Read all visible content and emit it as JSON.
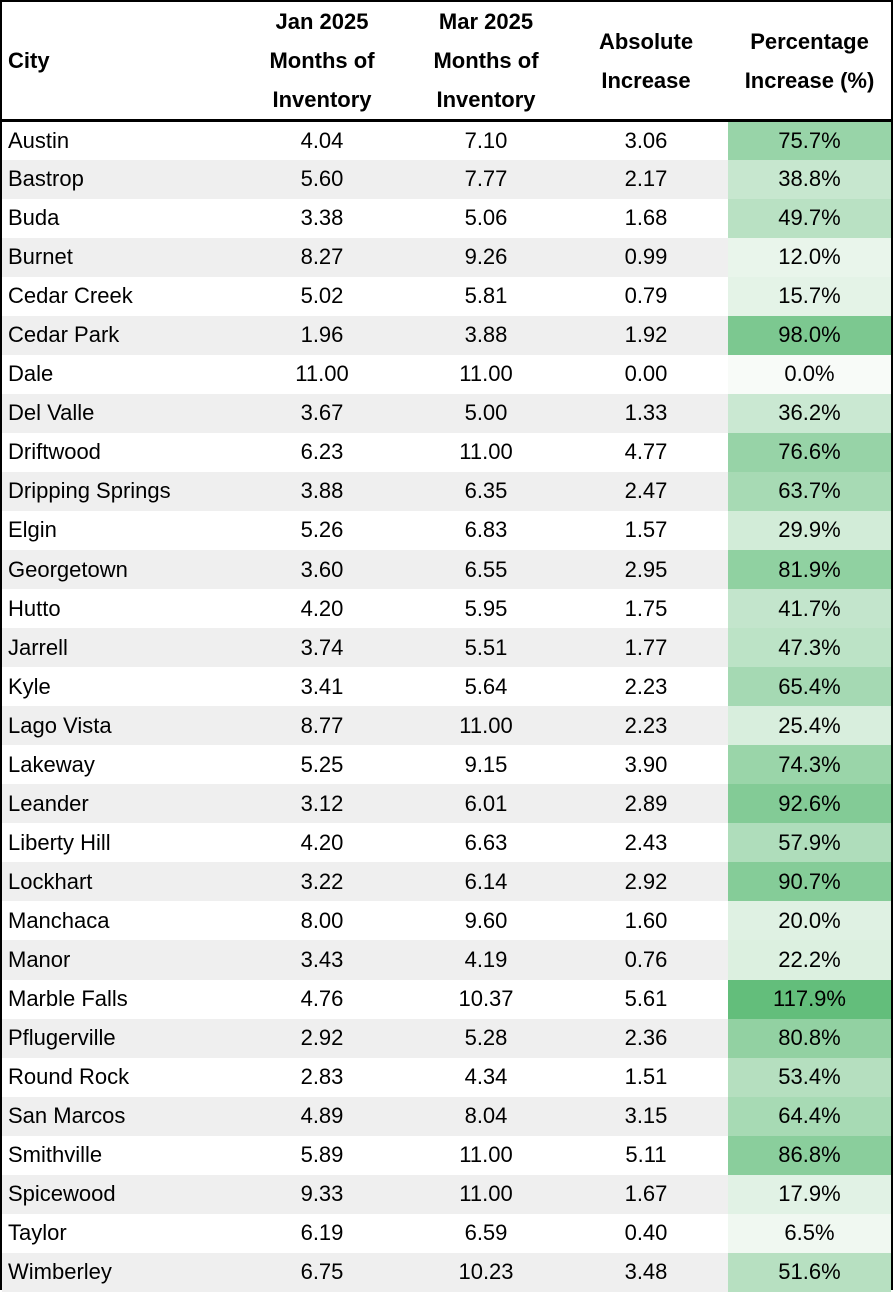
{
  "columns": {
    "city": "City",
    "jan": [
      "Jan 2025",
      "Months of",
      "Inventory"
    ],
    "mar": [
      "Mar 2025",
      "Months of",
      "Inventory"
    ],
    "abs": [
      "Absolute",
      "Increase"
    ],
    "pct": [
      "Percentage",
      "Increase (%)"
    ]
  },
  "heat_colors": {
    "low": "#f8fbf8",
    "high": "#63be7b"
  },
  "rows": [
    {
      "city": "Austin",
      "jan": "4.04",
      "mar": "7.10",
      "abs": "3.06",
      "pct": "75.7%",
      "pct_value": 75.7
    },
    {
      "city": "Bastrop",
      "jan": "5.60",
      "mar": "7.77",
      "abs": "2.17",
      "pct": "38.8%",
      "pct_value": 38.8
    },
    {
      "city": "Buda",
      "jan": "3.38",
      "mar": "5.06",
      "abs": "1.68",
      "pct": "49.7%",
      "pct_value": 49.7
    },
    {
      "city": "Burnet",
      "jan": "8.27",
      "mar": "9.26",
      "abs": "0.99",
      "pct": "12.0%",
      "pct_value": 12.0
    },
    {
      "city": "Cedar Creek",
      "jan": "5.02",
      "mar": "5.81",
      "abs": "0.79",
      "pct": "15.7%",
      "pct_value": 15.7
    },
    {
      "city": "Cedar Park",
      "jan": "1.96",
      "mar": "3.88",
      "abs": "1.92",
      "pct": "98.0%",
      "pct_value": 98.0
    },
    {
      "city": "Dale",
      "jan": "11.00",
      "mar": "11.00",
      "abs": "0.00",
      "pct": "0.0%",
      "pct_value": 0.0
    },
    {
      "city": "Del Valle",
      "jan": "3.67",
      "mar": "5.00",
      "abs": "1.33",
      "pct": "36.2%",
      "pct_value": 36.2
    },
    {
      "city": "Driftwood",
      "jan": "6.23",
      "mar": "11.00",
      "abs": "4.77",
      "pct": "76.6%",
      "pct_value": 76.6
    },
    {
      "city": "Dripping Springs",
      "jan": "3.88",
      "mar": "6.35",
      "abs": "2.47",
      "pct": "63.7%",
      "pct_value": 63.7
    },
    {
      "city": "Elgin",
      "jan": "5.26",
      "mar": "6.83",
      "abs": "1.57",
      "pct": "29.9%",
      "pct_value": 29.9
    },
    {
      "city": "Georgetown",
      "jan": "3.60",
      "mar": "6.55",
      "abs": "2.95",
      "pct": "81.9%",
      "pct_value": 81.9
    },
    {
      "city": "Hutto",
      "jan": "4.20",
      "mar": "5.95",
      "abs": "1.75",
      "pct": "41.7%",
      "pct_value": 41.7
    },
    {
      "city": "Jarrell",
      "jan": "3.74",
      "mar": "5.51",
      "abs": "1.77",
      "pct": "47.3%",
      "pct_value": 47.3
    },
    {
      "city": "Kyle",
      "jan": "3.41",
      "mar": "5.64",
      "abs": "2.23",
      "pct": "65.4%",
      "pct_value": 65.4
    },
    {
      "city": "Lago Vista",
      "jan": "8.77",
      "mar": "11.00",
      "abs": "2.23",
      "pct": "25.4%",
      "pct_value": 25.4
    },
    {
      "city": "Lakeway",
      "jan": "5.25",
      "mar": "9.15",
      "abs": "3.90",
      "pct": "74.3%",
      "pct_value": 74.3
    },
    {
      "city": "Leander",
      "jan": "3.12",
      "mar": "6.01",
      "abs": "2.89",
      "pct": "92.6%",
      "pct_value": 92.6
    },
    {
      "city": "Liberty Hill",
      "jan": "4.20",
      "mar": "6.63",
      "abs": "2.43",
      "pct": "57.9%",
      "pct_value": 57.9
    },
    {
      "city": "Lockhart",
      "jan": "3.22",
      "mar": "6.14",
      "abs": "2.92",
      "pct": "90.7%",
      "pct_value": 90.7
    },
    {
      "city": "Manchaca",
      "jan": "8.00",
      "mar": "9.60",
      "abs": "1.60",
      "pct": "20.0%",
      "pct_value": 20.0
    },
    {
      "city": "Manor",
      "jan": "3.43",
      "mar": "4.19",
      "abs": "0.76",
      "pct": "22.2%",
      "pct_value": 22.2
    },
    {
      "city": "Marble Falls",
      "jan": "4.76",
      "mar": "10.37",
      "abs": "5.61",
      "pct": "117.9%",
      "pct_value": 117.9
    },
    {
      "city": "Pflugerville",
      "jan": "2.92",
      "mar": "5.28",
      "abs": "2.36",
      "pct": "80.8%",
      "pct_value": 80.8
    },
    {
      "city": "Round Rock",
      "jan": "2.83",
      "mar": "4.34",
      "abs": "1.51",
      "pct": "53.4%",
      "pct_value": 53.4
    },
    {
      "city": "San Marcos",
      "jan": "4.89",
      "mar": "8.04",
      "abs": "3.15",
      "pct": "64.4%",
      "pct_value": 64.4
    },
    {
      "city": "Smithville",
      "jan": "5.89",
      "mar": "11.00",
      "abs": "5.11",
      "pct": "86.8%",
      "pct_value": 86.8
    },
    {
      "city": "Spicewood",
      "jan": "9.33",
      "mar": "11.00",
      "abs": "1.67",
      "pct": "17.9%",
      "pct_value": 17.9
    },
    {
      "city": "Taylor",
      "jan": "6.19",
      "mar": "6.59",
      "abs": "0.40",
      "pct": "6.5%",
      "pct_value": 6.5
    },
    {
      "city": "Wimberley",
      "jan": "6.75",
      "mar": "10.23",
      "abs": "3.48",
      "pct": "51.6%",
      "pct_value": 51.6
    }
  ]
}
